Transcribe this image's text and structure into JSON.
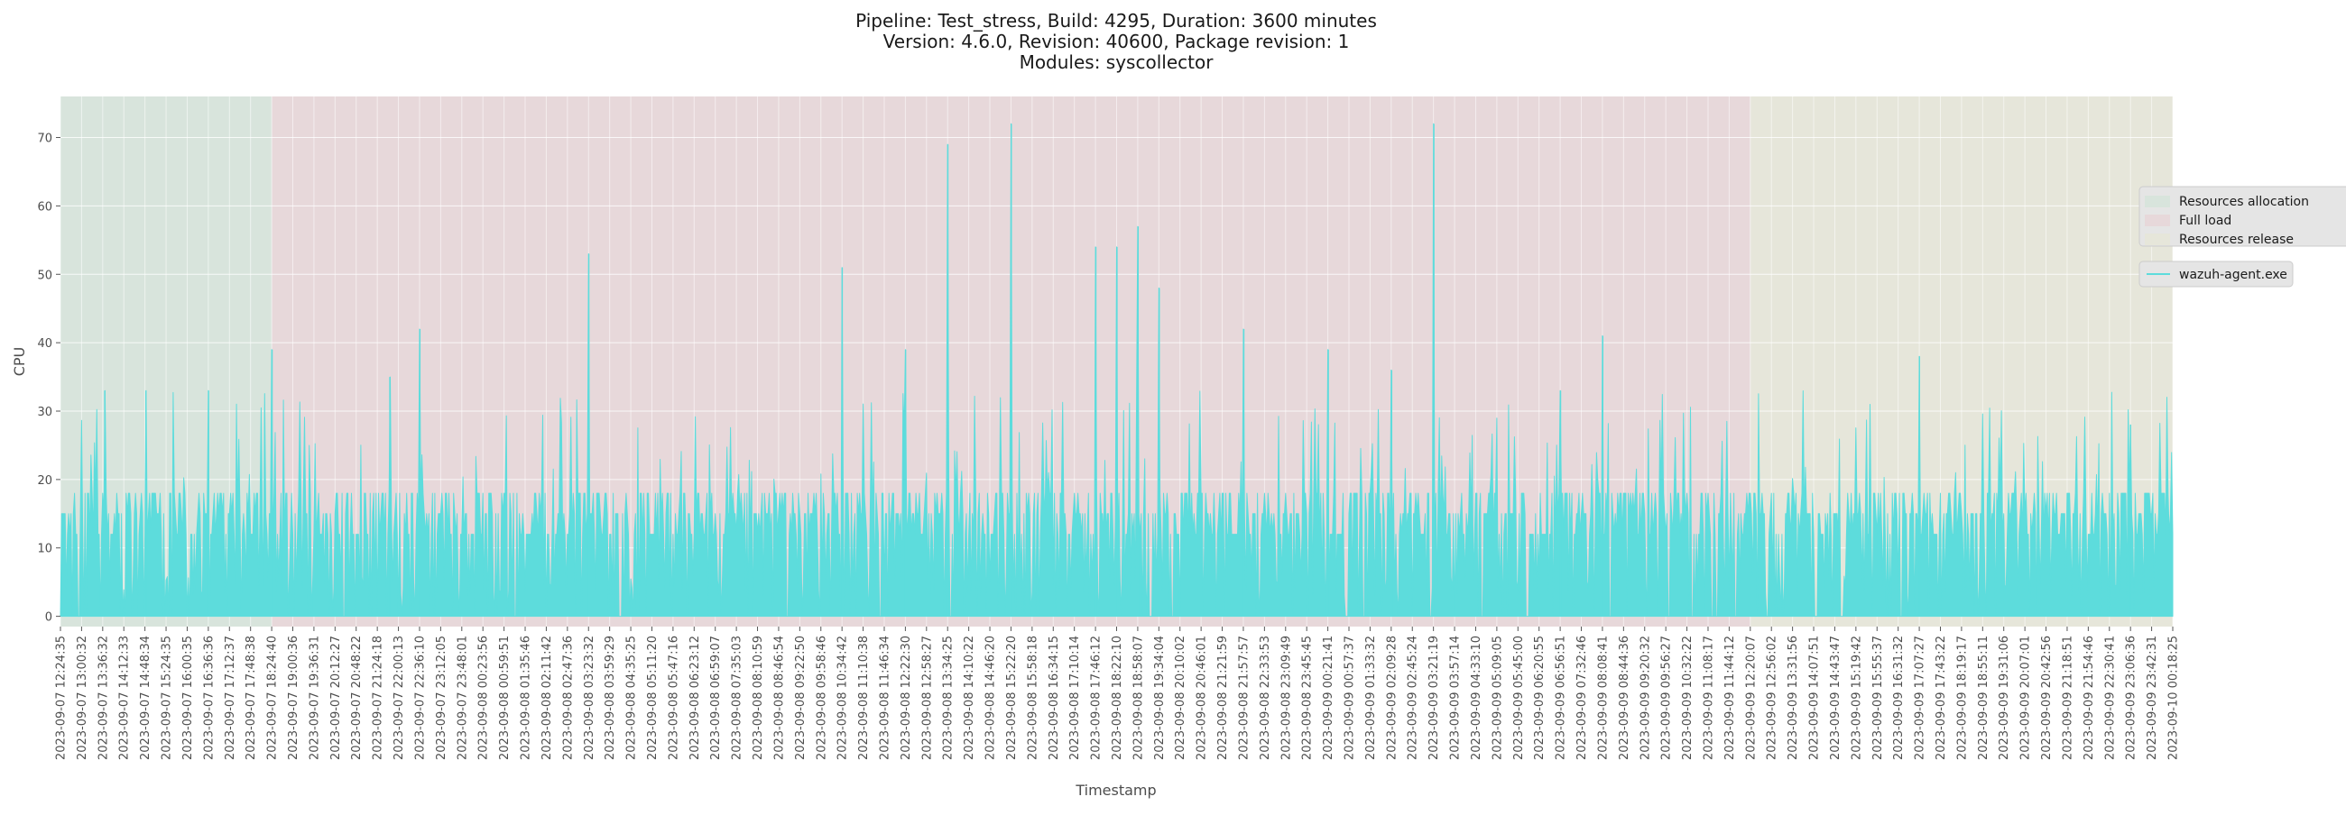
{
  "chart_data": {
    "type": "area",
    "title_lines": [
      "Pipeline: Test_stress, Build: 4295, Duration: 3600 minutes",
      "Version: 4.6.0, Revision: 40600, Package revision: 1",
      "Modules: syscollector"
    ],
    "xlabel": "Timestamp",
    "ylabel": "CPU",
    "ylim": [
      -1.5,
      76
    ],
    "y_ticks": [
      0,
      10,
      20,
      30,
      40,
      50,
      60,
      70
    ],
    "grid": true,
    "legend_placement": "right",
    "x_ticks": [
      "2023-09-07 12:24:35",
      "2023-09-07 13:00:32",
      "2023-09-07 13:36:32",
      "2023-09-07 14:12:33",
      "2023-09-07 14:48:34",
      "2023-09-07 15:24:35",
      "2023-09-07 16:00:35",
      "2023-09-07 16:36:36",
      "2023-09-07 17:12:37",
      "2023-09-07 17:48:38",
      "2023-09-07 18:24:40",
      "2023-09-07 19:00:36",
      "2023-09-07 19:36:31",
      "2023-09-07 20:12:27",
      "2023-09-07 20:48:22",
      "2023-09-07 21:24:18",
      "2023-09-07 22:00:13",
      "2023-09-07 22:36:10",
      "2023-09-07 23:12:05",
      "2023-09-07 23:48:01",
      "2023-09-08 00:23:56",
      "2023-09-08 00:59:51",
      "2023-09-08 01:35:46",
      "2023-09-08 02:11:42",
      "2023-09-08 02:47:36",
      "2023-09-08 03:23:32",
      "2023-09-08 03:59:29",
      "2023-09-08 04:35:25",
      "2023-09-08 05:11:20",
      "2023-09-08 05:47:16",
      "2023-09-08 06:23:12",
      "2023-09-08 06:59:07",
      "2023-09-08 07:35:03",
      "2023-09-08 08:10:59",
      "2023-09-08 08:46:54",
      "2023-09-08 09:22:50",
      "2023-09-08 09:58:46",
      "2023-09-08 10:34:42",
      "2023-09-08 11:10:38",
      "2023-09-08 11:46:34",
      "2023-09-08 12:22:30",
      "2023-09-08 12:58:27",
      "2023-09-08 13:34:25",
      "2023-09-08 14:10:22",
      "2023-09-08 14:46:20",
      "2023-09-08 15:22:20",
      "2023-09-08 15:58:18",
      "2023-09-08 16:34:15",
      "2023-09-08 17:10:14",
      "2023-09-08 17:46:12",
      "2023-09-08 18:22:10",
      "2023-09-08 18:58:07",
      "2023-09-08 19:34:04",
      "2023-09-08 20:10:02",
      "2023-09-08 20:46:01",
      "2023-09-08 21:21:59",
      "2023-09-08 21:57:57",
      "2023-09-08 22:33:53",
      "2023-09-08 23:09:49",
      "2023-09-08 23:45:45",
      "2023-09-09 00:21:41",
      "2023-09-09 00:57:37",
      "2023-09-09 01:33:32",
      "2023-09-09 02:09:28",
      "2023-09-09 02:45:24",
      "2023-09-09 03:21:19",
      "2023-09-09 03:57:14",
      "2023-09-09 04:33:10",
      "2023-09-09 05:09:05",
      "2023-09-09 05:45:00",
      "2023-09-09 06:20:55",
      "2023-09-09 06:56:51",
      "2023-09-09 07:32:46",
      "2023-09-09 08:08:41",
      "2023-09-09 08:44:36",
      "2023-09-09 09:20:32",
      "2023-09-09 09:56:27",
      "2023-09-09 10:32:22",
      "2023-09-09 11:08:17",
      "2023-09-09 11:44:12",
      "2023-09-09 12:20:07",
      "2023-09-09 12:56:02",
      "2023-09-09 13:31:56",
      "2023-09-09 14:07:51",
      "2023-09-09 14:43:47",
      "2023-09-09 15:19:42",
      "2023-09-09 15:55:37",
      "2023-09-09 16:31:32",
      "2023-09-09 17:07:27",
      "2023-09-09 17:43:22",
      "2023-09-09 18:19:17",
      "2023-09-09 18:55:11",
      "2023-09-09 19:31:06",
      "2023-09-09 20:07:01",
      "2023-09-09 20:42:56",
      "2023-09-09 21:18:51",
      "2023-09-09 21:54:46",
      "2023-09-09 22:30:41",
      "2023-09-09 23:06:36",
      "2023-09-09 23:42:31",
      "2023-09-10 00:18:25"
    ],
    "phases": [
      {
        "name": "Resources allocation",
        "start": "2023-09-07 12:24:35",
        "end": "2023-09-07 18:24:40",
        "color": "#d8e4dc"
      },
      {
        "name": "Full load",
        "start": "2023-09-07 18:24:40",
        "end": "2023-09-09 12:20:07",
        "color": "#e7d8da"
      },
      {
        "name": "Resources release",
        "start": "2023-09-09 12:20:07",
        "end": "2023-09-10 00:18:25",
        "color": "#e6e6da"
      }
    ],
    "series": [
      {
        "name": "wazuh-agent.exe",
        "color": "#5ddcdc",
        "baseline_typical": [
          12,
          15,
          18
        ],
        "x_start": "2023-09-07 12:24:35",
        "x_end": "2023-09-10 00:18:25",
        "notable_peaks": [
          {
            "x": "2023-09-07 13:40:00",
            "y": 33
          },
          {
            "x": "2023-09-07 14:50:00",
            "y": 33
          },
          {
            "x": "2023-09-07 16:36:36",
            "y": 33
          },
          {
            "x": "2023-09-07 18:24:40",
            "y": 39
          },
          {
            "x": "2023-09-07 21:45:00",
            "y": 35
          },
          {
            "x": "2023-09-07 22:36:10",
            "y": 42
          },
          {
            "x": "2023-09-08 03:23:32",
            "y": 53
          },
          {
            "x": "2023-09-08 10:34:42",
            "y": 51
          },
          {
            "x": "2023-09-08 12:22:30",
            "y": 39
          },
          {
            "x": "2023-09-08 13:34:25",
            "y": 69
          },
          {
            "x": "2023-09-08 15:22:20",
            "y": 72
          },
          {
            "x": "2023-09-08 17:46:12",
            "y": 54
          },
          {
            "x": "2023-09-08 18:22:10",
            "y": 54
          },
          {
            "x": "2023-09-08 18:58:07",
            "y": 57
          },
          {
            "x": "2023-09-08 19:34:04",
            "y": 48
          },
          {
            "x": "2023-09-08 21:57:57",
            "y": 42
          },
          {
            "x": "2023-09-09 00:21:41",
            "y": 39
          },
          {
            "x": "2023-09-09 02:09:28",
            "y": 36
          },
          {
            "x": "2023-09-09 03:21:19",
            "y": 72
          },
          {
            "x": "2023-09-09 06:56:51",
            "y": 33
          },
          {
            "x": "2023-09-09 08:08:41",
            "y": 41
          },
          {
            "x": "2023-09-09 17:07:27",
            "y": 38
          },
          {
            "x": "2023-09-09 23:06:36",
            "y": 28
          }
        ]
      }
    ]
  }
}
